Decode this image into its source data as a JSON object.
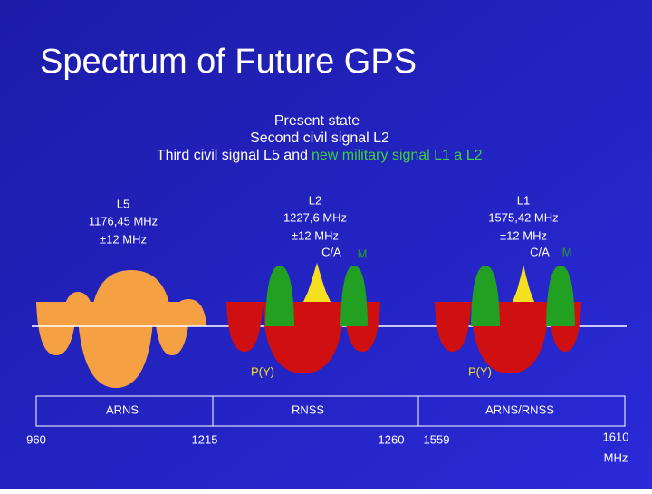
{
  "title": "Spectrum of Future GPS",
  "subtitle": {
    "line1": "Present state",
    "line2": "Second civil signal L2",
    "line3_white": "Third civil signal L5 and",
    "line3_green": "new military signal L1 a L2"
  },
  "signals": [
    {
      "name": "L5",
      "frequency": "1176,45 MHz",
      "bandwidth": "±12 MHz"
    },
    {
      "name": "L2",
      "frequency": "1227,6 MHz",
      "bandwidth": "±12 MHz",
      "civil": "C/A",
      "military": "M",
      "precise": "P(Y)"
    },
    {
      "name": "L1",
      "frequency": "1575,42 MHz",
      "bandwidth": "±12 MHz",
      "civil": "C/A",
      "military": "M",
      "precise": "P(Y)"
    }
  ],
  "bands": [
    "ARNS",
    "RNSS",
    "ARNS/RNSS"
  ],
  "frequency_marks": [
    "960",
    "1215",
    "1260",
    "1559",
    "1610"
  ],
  "unit": "MHz"
}
